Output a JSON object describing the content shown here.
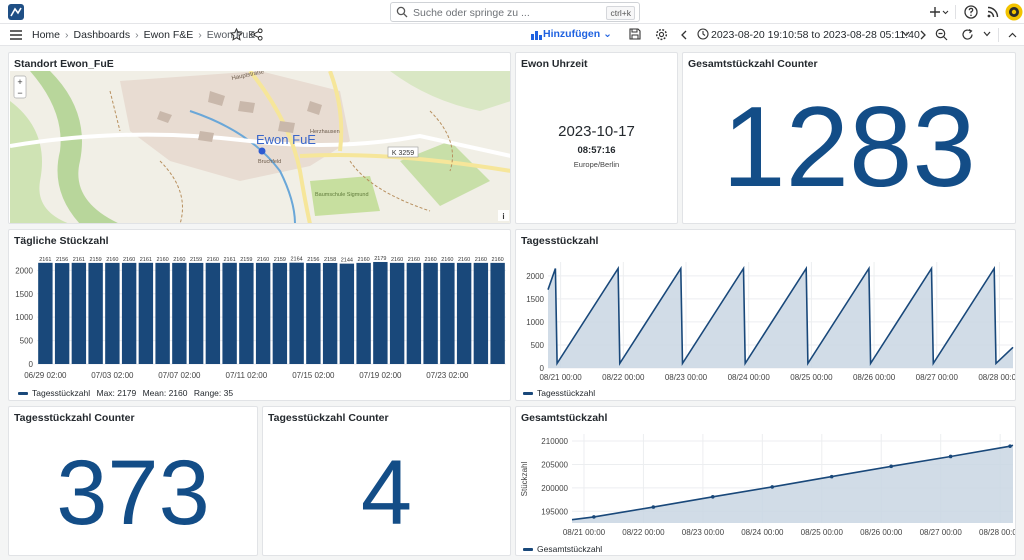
{
  "search": {
    "placeholder": "Suche oder springe zu ...",
    "shortcut": "ctrl+k"
  },
  "breadcrumb": {
    "home": "Home",
    "dashboards": "Dashboards",
    "folder": "Ewon F&E",
    "current": "Ewon FuE"
  },
  "toolbar": {
    "add_label": "Hinzufügen",
    "time_range": "2023-08-20 19:10:58 to 2023-08-28 05:11:40"
  },
  "panels": {
    "map": {
      "title": "Standort Ewon_FuE",
      "marker_label": "Ewon FuE",
      "road_label": "K 3259",
      "place_labels": [
        "Hauptstraße",
        "Bruchfeld",
        "Herzhausen",
        "Baumschule Sigmund"
      ]
    },
    "clock": {
      "title": "Ewon Uhrzeit",
      "date": "2023-10-17",
      "time": "08:57:16",
      "timezone": "Europe/Berlin"
    },
    "total_counter": {
      "title": "Gesamtstückzahl Counter",
      "value": "1283"
    },
    "daily_bars": {
      "title": "Tägliche Stückzahl"
    },
    "daily_line": {
      "title": "Tagesstückzahl"
    },
    "day_counter_a": {
      "title": "Tagesstückzahl Counter",
      "value": "373"
    },
    "day_counter_b": {
      "title": "Tagesstückzahl Counter",
      "value": "4"
    },
    "total_line": {
      "title": "Gesamtstückzahl"
    }
  },
  "chart_data": [
    {
      "id": "daily_bars",
      "type": "bar",
      "title": "Tägliche Stückzahl",
      "x_tick_labels": [
        "06/29 02:00",
        "07/03 02:00",
        "07/07 02:00",
        "07/11 02:00",
        "07/15 02:00",
        "07/19 02:00",
        "07/23 02:00"
      ],
      "y_ticks": [
        0,
        500,
        1000,
        1500,
        2000
      ],
      "ylim": [
        0,
        2200
      ],
      "values": [
        2161,
        2156,
        2161,
        2159,
        2160,
        2160,
        2161,
        2160,
        2160,
        2159,
        2160,
        2161,
        2159,
        2160,
        2159,
        2164,
        2156,
        2158,
        2144,
        2160,
        2179,
        2160,
        2160,
        2160,
        2160,
        2160,
        2160,
        2160
      ],
      "data_labels": [
        "2161",
        "2156",
        "2161",
        "2159",
        "2160",
        "2160",
        "2161",
        "2160",
        "2160",
        "2159",
        "2160",
        "2161",
        "2159",
        "2160",
        "2159",
        "2164",
        "2156",
        "2158",
        "2144",
        "2160",
        "2179",
        "2160",
        "2160",
        "2160",
        "2160",
        "2160",
        "2160",
        "2160"
      ],
      "legend": {
        "name": "Tagesstückzahl",
        "max": "Max: 2179",
        "mean": "Mean: 2160",
        "range": "Range: 35"
      },
      "color": "#19487a"
    },
    {
      "id": "daily_line",
      "type": "area",
      "title": "Tagesstückzahl",
      "x_tick_labels": [
        "08/21 00:00",
        "08/22 00:00",
        "08/23 00:00",
        "08/24 00:00",
        "08/25 00:00",
        "08/26 00:00",
        "08/27 00:00",
        "08/28 00:00"
      ],
      "y_ticks": [
        0,
        500,
        1000,
        1500,
        2000
      ],
      "ylim": [
        0,
        2300
      ],
      "xlim_days": [
        "2023-08-20 19:10",
        "2023-08-28 05:11"
      ],
      "points": [
        {
          "x": "2023-08-20 19:10",
          "y": 1700
        },
        {
          "x": "2023-08-20 22:00",
          "y": 2160
        },
        {
          "x": "2023-08-20 22:40",
          "y": 100
        },
        {
          "x": "2023-08-21 22:00",
          "y": 2160
        },
        {
          "x": "2023-08-21 22:40",
          "y": 100
        },
        {
          "x": "2023-08-22 22:00",
          "y": 2160
        },
        {
          "x": "2023-08-22 22:40",
          "y": 100
        },
        {
          "x": "2023-08-23 22:00",
          "y": 2160
        },
        {
          "x": "2023-08-23 22:40",
          "y": 100
        },
        {
          "x": "2023-08-24 22:00",
          "y": 2160
        },
        {
          "x": "2023-08-24 22:40",
          "y": 100
        },
        {
          "x": "2023-08-25 22:00",
          "y": 2160
        },
        {
          "x": "2023-08-25 22:40",
          "y": 100
        },
        {
          "x": "2023-08-26 22:00",
          "y": 2160
        },
        {
          "x": "2023-08-26 22:40",
          "y": 100
        },
        {
          "x": "2023-08-27 22:00",
          "y": 2160
        },
        {
          "x": "2023-08-27 22:40",
          "y": 100
        },
        {
          "x": "2023-08-28 05:11",
          "y": 450
        }
      ],
      "legend": {
        "name": "Tagesstückzahl"
      },
      "color": "#19487a"
    },
    {
      "id": "total_line",
      "type": "area",
      "title": "Gesamtstückzahl",
      "ylabel": "Stückzahl",
      "x_tick_labels": [
        "08/21 00:00",
        "08/22 00:00",
        "08/23 00:00",
        "08/24 00:00",
        "08/25 00:00",
        "08/26 00:00",
        "08/27 00:00",
        "08/28 00:00"
      ],
      "y_ticks": [
        195000,
        200000,
        205000,
        210000
      ],
      "y_tick_labels": [
        "195000",
        "200000",
        "205000",
        "210000"
      ],
      "ylim": [
        192500,
        211500
      ],
      "points": [
        {
          "x": "2023-08-20 19:10",
          "y": 193200
        },
        {
          "x": "2023-08-21 04:00",
          "y": 193800
        },
        {
          "x": "2023-08-22 04:00",
          "y": 195900
        },
        {
          "x": "2023-08-23 04:00",
          "y": 198100
        },
        {
          "x": "2023-08-24 04:00",
          "y": 200200
        },
        {
          "x": "2023-08-25 04:00",
          "y": 202400
        },
        {
          "x": "2023-08-26 04:00",
          "y": 204600
        },
        {
          "x": "2023-08-27 04:00",
          "y": 206700
        },
        {
          "x": "2023-08-28 04:00",
          "y": 208900
        },
        {
          "x": "2023-08-28 05:11",
          "y": 209100
        }
      ],
      "legend": {
        "name": "Gesamtstückzahl"
      },
      "color": "#19487a"
    }
  ],
  "colors": {
    "stat": "#134d87",
    "series": "#19487a",
    "area_fill": "#c9d6e3",
    "add_accent": "#1f62e0"
  },
  "icons": [
    "logo-icon",
    "search-icon",
    "plus-icon",
    "help-icon",
    "rss-icon",
    "avatar",
    "menu-icon",
    "star-icon",
    "share-icon",
    "save-icon",
    "settings-icon",
    "clock-icon",
    "zoom-out-icon",
    "refresh-icon",
    "chevron-down-icon",
    "info-icon"
  ]
}
